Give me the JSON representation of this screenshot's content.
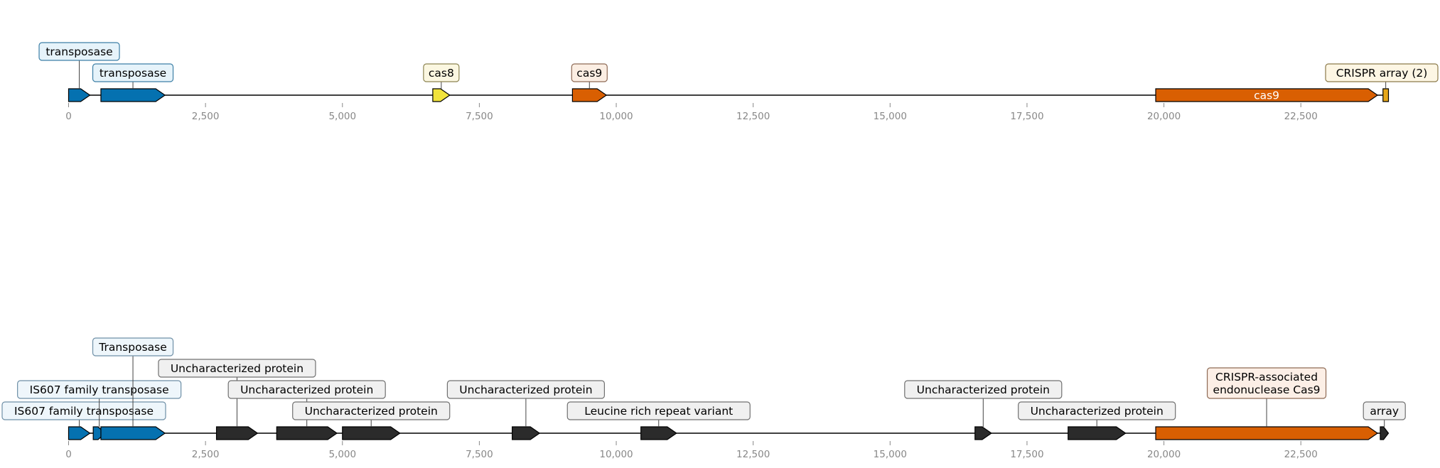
{
  "colors": {
    "transposase": "#0571b0",
    "cas8": "#f1e33c",
    "cas9": "#d95f02",
    "crispr": "#e6a71a",
    "unknown": "#2b2b2b",
    "tick_text": "#888888"
  },
  "axis": {
    "min": 0,
    "max": 24100,
    "ticks": [
      0,
      2500,
      5000,
      7500,
      10000,
      12500,
      15000,
      17500,
      20000,
      22500
    ],
    "tick_labels": [
      "0",
      "2,500",
      "5,000",
      "7,500",
      "10,000",
      "12,500",
      "15,000",
      "17,500",
      "20,000",
      "22,500"
    ]
  },
  "tracks": [
    {
      "name": "",
      "features": [
        {
          "start": 0,
          "end": 390,
          "strand": 1,
          "type": "transposase",
          "label": "transposase",
          "level": 1,
          "fill": "#e6f3fa",
          "edge": "#3d7fa6"
        },
        {
          "start": 590,
          "end": 1760,
          "strand": 1,
          "type": "transposase",
          "label": "transposase",
          "level": 0,
          "fill": "#e6f3fa",
          "edge": "#3d7fa6"
        },
        {
          "start": 6650,
          "end": 6960,
          "strand": 1,
          "type": "cas8",
          "label": "cas8",
          "level": 0,
          "fill": "#fbf7e1",
          "edge": "#8c8452"
        },
        {
          "start": 9200,
          "end": 9820,
          "strand": 1,
          "type": "cas9",
          "label": "cas9",
          "level": 0,
          "fill": "#fbeee3",
          "edge": "#8e6a55"
        },
        {
          "start": 19850,
          "end": 23900,
          "strand": 1,
          "type": "cas9",
          "label": "cas9",
          "inside": true
        },
        {
          "start": 24000,
          "end": 24100,
          "strand": 0,
          "type": "crispr",
          "label": "CRISPR array (2)",
          "level": 0,
          "fill": "#fdf6e4",
          "edge": "#8c7a4a"
        }
      ]
    },
    {
      "name": "",
      "features": [
        {
          "start": 0,
          "end": 390,
          "strand": 1,
          "type": "transposase",
          "label": "IS607 family transposase",
          "level": 0,
          "fill": "#eef6fb",
          "edge": "#6e8fa6"
        },
        {
          "start": 450,
          "end": 670,
          "strand": 1,
          "type": "transposase",
          "label": "IS607 family transposase",
          "level": 1,
          "fill": "#eef6fb",
          "edge": "#6e8fa6"
        },
        {
          "start": 590,
          "end": 1760,
          "strand": 1,
          "type": "transposase",
          "label": "Transposase",
          "level": 3,
          "fill": "#eef6fb",
          "edge": "#6e8fa6"
        },
        {
          "start": 2700,
          "end": 3450,
          "strand": 1,
          "type": "unknown",
          "label": "Uncharacterized protein",
          "level": 2,
          "fill": "#f0f0f0",
          "edge": "#707070"
        },
        {
          "start": 3800,
          "end": 4900,
          "strand": 1,
          "type": "unknown",
          "label": "Uncharacterized protein",
          "level": 1,
          "fill": "#f0f0f0",
          "edge": "#707070"
        },
        {
          "start": 5000,
          "end": 6050,
          "strand": 1,
          "type": "unknown",
          "label": "Uncharacterized protein",
          "level": 0,
          "fill": "#f0f0f0",
          "edge": "#707070"
        },
        {
          "start": 8100,
          "end": 8600,
          "strand": 1,
          "type": "unknown",
          "label": "Uncharacterized protein",
          "level": 1,
          "fill": "#f0f0f0",
          "edge": "#707070"
        },
        {
          "start": 10450,
          "end": 11100,
          "strand": 1,
          "type": "unknown",
          "label": "Leucine rich repeat variant",
          "level": 0,
          "fill": "#f0f0f0",
          "edge": "#707070"
        },
        {
          "start": 16550,
          "end": 16850,
          "strand": 1,
          "type": "unknown",
          "label": "Uncharacterized protein",
          "level": 1,
          "fill": "#f0f0f0",
          "edge": "#707070"
        },
        {
          "start": 18250,
          "end": 19300,
          "strand": 1,
          "type": "unknown",
          "label": "Uncharacterized protein",
          "level": 0,
          "fill": "#f0f0f0",
          "edge": "#707070"
        },
        {
          "start": 19850,
          "end": 23900,
          "strand": 1,
          "type": "cas9",
          "label": "CRISPR-associated\nendonuclease Cas9",
          "level": 1,
          "fill": "#fcefe6",
          "edge": "#8e6a55"
        },
        {
          "start": 23950,
          "end": 24100,
          "strand": 1,
          "type": "unknown",
          "label": "array",
          "level": 0,
          "fill": "#f0f0f0",
          "edge": "#707070"
        }
      ]
    }
  ]
}
